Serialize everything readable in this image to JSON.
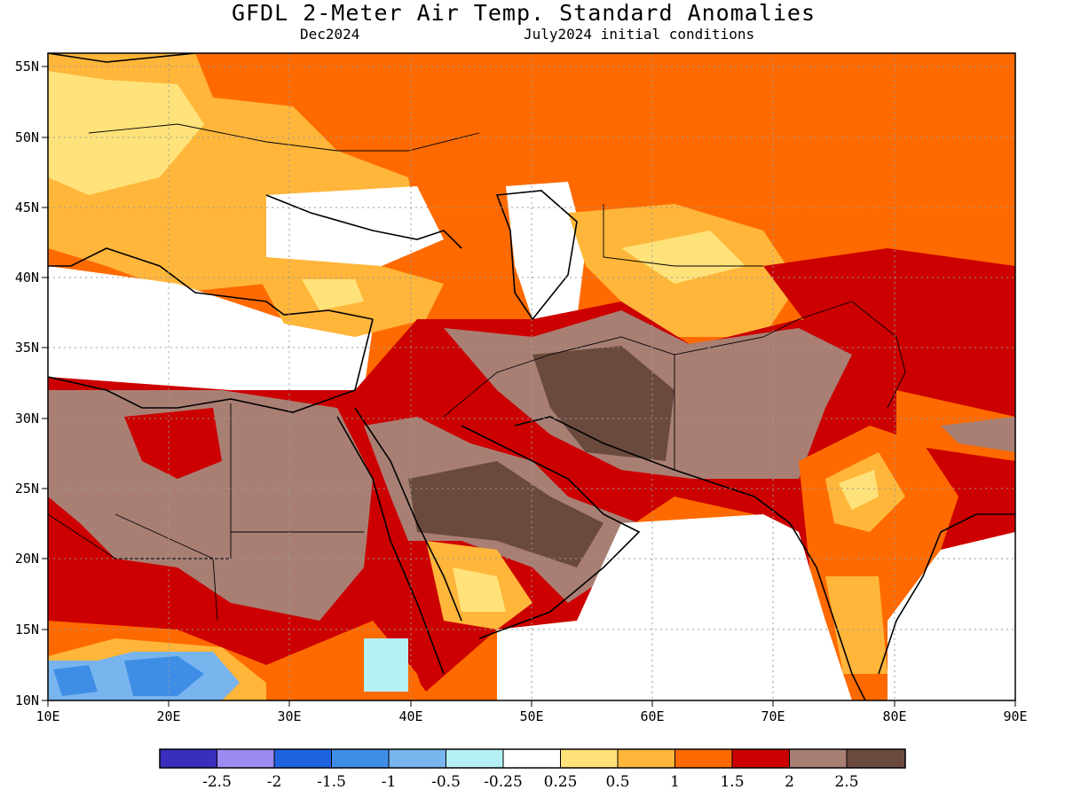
{
  "header": {
    "title": "GFDL 2-Meter Air Temp. Standard Anomalies",
    "valid_month": "Dec2024",
    "init": "July2024 initial conditions"
  },
  "map": {
    "lon_range": [
      10,
      90
    ],
    "lat_range": [
      10,
      56
    ],
    "lon_ticks": [
      "10E",
      "20E",
      "30E",
      "40E",
      "50E",
      "60E",
      "70E",
      "80E",
      "90E"
    ],
    "lat_ticks": [
      "10N",
      "15N",
      "20N",
      "25N",
      "30N",
      "35N",
      "40N",
      "45N",
      "50N",
      "55N"
    ]
  },
  "legend": {
    "colors": [
      "#3a2ebd",
      "#9b8cf2",
      "#1f63e0",
      "#3f8ee6",
      "#78b4ee",
      "#b4f0f4",
      "#ffffff",
      "#ffe27a",
      "#ffb63a",
      "#ff6a00",
      "#cc0000",
      "#a97f74",
      "#6b4a3e"
    ],
    "labels": [
      "-2.5",
      "-2",
      "-1.5",
      "-1",
      "-0.5",
      "-0.25",
      "0.25",
      "0.5",
      "1",
      "1.5",
      "2",
      "2.5"
    ]
  }
}
